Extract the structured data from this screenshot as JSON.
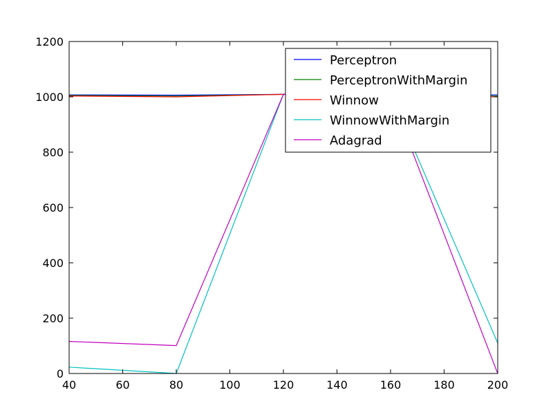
{
  "chart_data": {
    "type": "line",
    "title": "",
    "xlabel": "",
    "ylabel": "",
    "x": [
      40,
      80,
      120,
      160,
      200
    ],
    "xlim": [
      40,
      200
    ],
    "ylim": [
      0,
      1200
    ],
    "xticks": [
      "40",
      "60",
      "80",
      "100",
      "120",
      "140",
      "160",
      "180",
      "200"
    ],
    "yticks": [
      "0",
      "200",
      "400",
      "600",
      "800",
      "1000",
      "1200"
    ],
    "grid": false,
    "legend_position": "top-right",
    "series": [
      {
        "name": "Perceptron",
        "color": "#0000ff",
        "values": [
          1007,
          1006,
          1009,
          1008,
          1007
        ]
      },
      {
        "name": "PerceptronWithMargin",
        "color": "#008000",
        "values": [
          1005,
          1003,
          1009,
          1008,
          1003
        ]
      },
      {
        "name": "Winnow",
        "color": "#ff0000",
        "values": [
          1003,
          1000,
          1009,
          1007,
          1000
        ]
      },
      {
        "name": "WinnowWithMargin",
        "color": "#00bfbf",
        "values": [
          23,
          0,
          1009,
          1007,
          110
        ]
      },
      {
        "name": "Adagrad",
        "color": "#bf00bf",
        "values": [
          116,
          101,
          1009,
          1007,
          0
        ]
      }
    ]
  }
}
